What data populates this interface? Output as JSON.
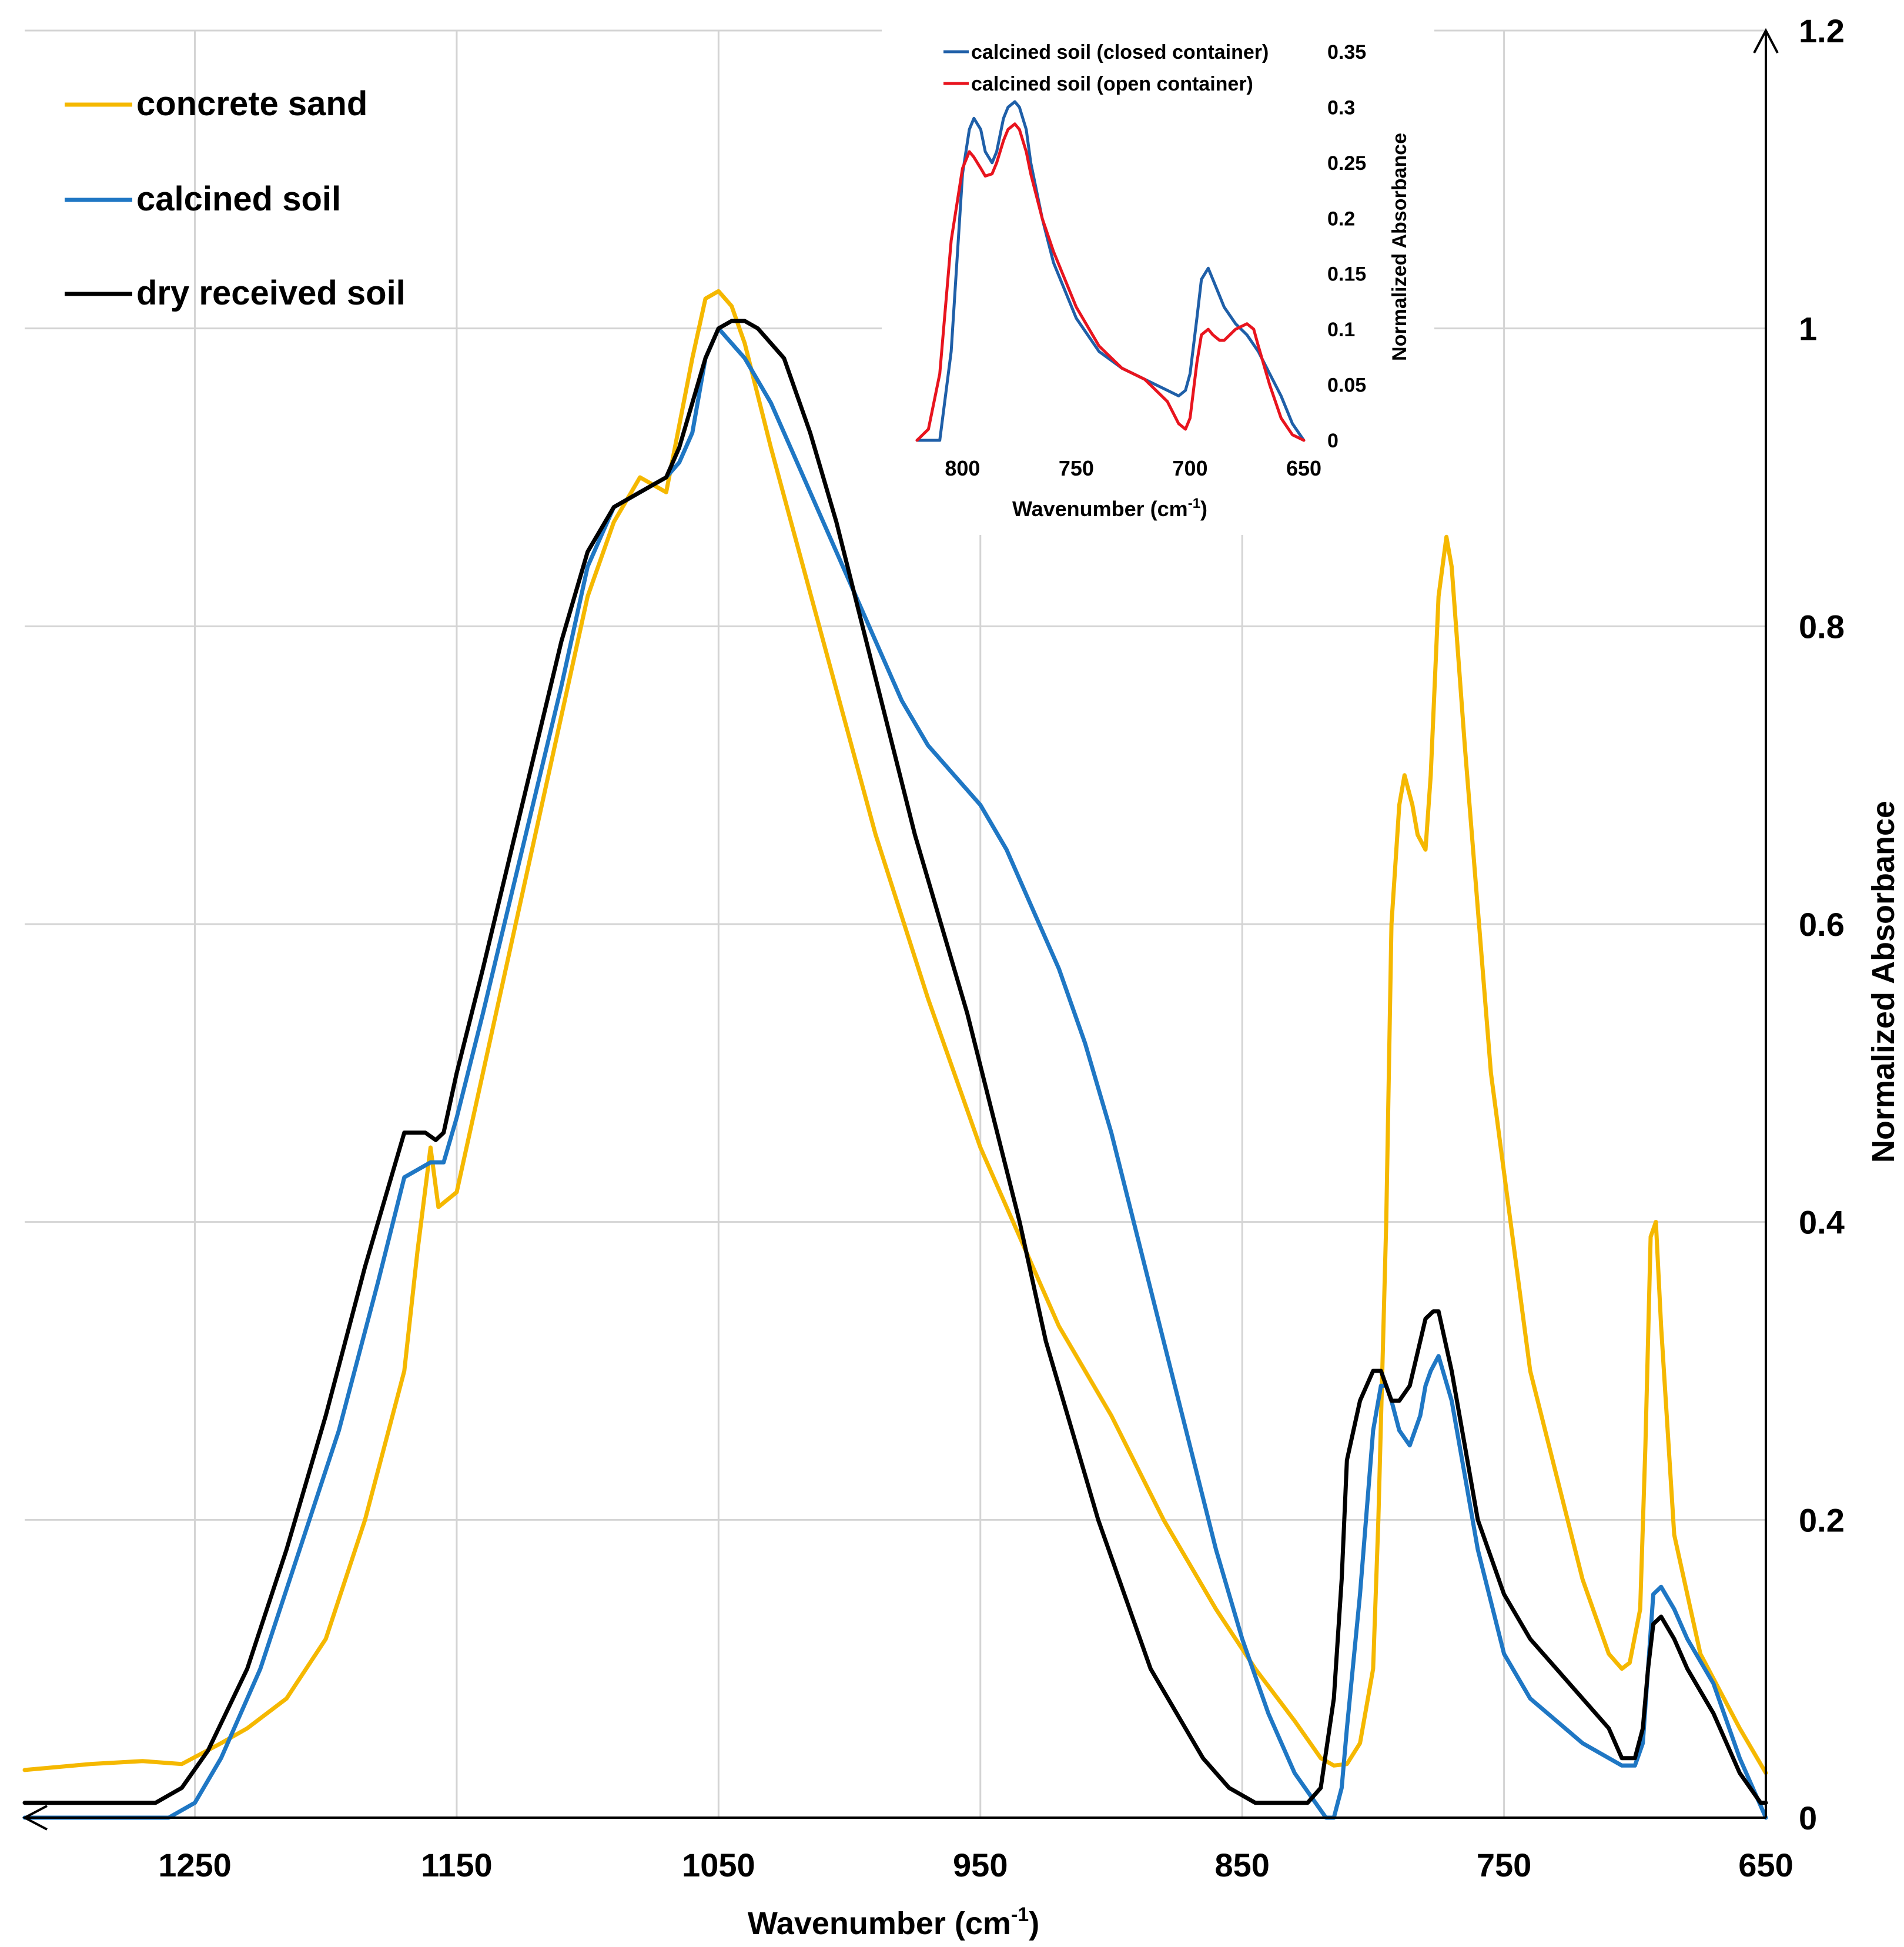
{
  "chart_data": [
    {
      "type": "line",
      "title": "",
      "xlabel": "Wavenumber (cm",
      "xlabel_sup": "-1",
      "xlabel_close": ")",
      "ylabel": "Normalized Absorbance",
      "xlim": [
        1315,
        650
      ],
      "ylim": [
        0,
        1.2
      ],
      "x_reversed": true,
      "grid": true,
      "legend_position": "top-left",
      "xticks": [
        1250,
        1150,
        1050,
        950,
        850,
        750,
        650
      ],
      "xtick_labels": [
        "1250",
        "1150",
        "1050",
        "950",
        "850",
        "750",
        "650"
      ],
      "yticks": [
        0,
        0.2,
        0.4,
        0.6,
        0.8,
        1,
        1.2
      ],
      "ytick_labels": [
        "0",
        "0.2",
        "0.4",
        "0.6",
        "0.8",
        "1",
        "1.2"
      ],
      "series": [
        {
          "name": "concrete sand",
          "color": "#F5B800",
          "x": [
            1315,
            1290,
            1270,
            1255,
            1240,
            1230,
            1215,
            1200,
            1185,
            1170,
            1165,
            1160,
            1157,
            1150,
            1140,
            1120,
            1100,
            1090,
            1080,
            1075,
            1070,
            1060,
            1055,
            1050,
            1045,
            1040,
            1030,
            1010,
            990,
            970,
            950,
            920,
            900,
            880,
            860,
            845,
            830,
            820,
            815,
            810,
            805,
            800,
            798,
            795,
            793,
            790,
            788,
            785,
            783,
            780,
            778,
            775,
            772,
            770,
            765,
            755,
            740,
            720,
            710,
            705,
            702,
            698,
            696,
            694,
            692,
            690,
            685,
            675,
            660,
            650
          ],
          "y": [
            0.032,
            0.036,
            0.038,
            0.036,
            0.05,
            0.06,
            0.08,
            0.12,
            0.2,
            0.3,
            0.38,
            0.45,
            0.41,
            0.42,
            0.5,
            0.66,
            0.82,
            0.87,
            0.9,
            0.895,
            0.89,
            0.98,
            1.02,
            1.025,
            1.015,
            0.99,
            0.92,
            0.79,
            0.66,
            0.55,
            0.45,
            0.33,
            0.27,
            0.2,
            0.14,
            0.1,
            0.065,
            0.04,
            0.035,
            0.036,
            0.05,
            0.1,
            0.2,
            0.4,
            0.6,
            0.68,
            0.7,
            0.68,
            0.66,
            0.65,
            0.7,
            0.82,
            0.86,
            0.84,
            0.72,
            0.5,
            0.3,
            0.16,
            0.11,
            0.1,
            0.104,
            0.14,
            0.25,
            0.39,
            0.4,
            0.33,
            0.19,
            0.11,
            0.06,
            0.03
          ]
        },
        {
          "name": "calcined soil",
          "color": "#1F77C4",
          "x": [
            1315,
            1260,
            1250,
            1240,
            1225,
            1210,
            1195,
            1180,
            1170,
            1160,
            1155,
            1150,
            1140,
            1125,
            1110,
            1100,
            1090,
            1080,
            1070,
            1065,
            1060,
            1055,
            1050,
            1040,
            1030,
            1020,
            1010,
            1000,
            990,
            980,
            970,
            960,
            950,
            940,
            930,
            920,
            910,
            900,
            890,
            880,
            870,
            860,
            850,
            840,
            830,
            822,
            818,
            815,
            812,
            810,
            805,
            800,
            797,
            795,
            793,
            790,
            786,
            782,
            780,
            778,
            775,
            770,
            765,
            760,
            750,
            740,
            730,
            720,
            710,
            705,
            700,
            697,
            695,
            693,
            690,
            685,
            680,
            670,
            660,
            650
          ],
          "y": [
            0.0,
            0.0,
            0.01,
            0.04,
            0.1,
            0.18,
            0.26,
            0.36,
            0.43,
            0.44,
            0.44,
            0.47,
            0.54,
            0.65,
            0.76,
            0.84,
            0.88,
            0.89,
            0.9,
            0.91,
            0.93,
            0.98,
            1.0,
            0.98,
            0.95,
            0.91,
            0.87,
            0.83,
            0.79,
            0.75,
            0.72,
            0.7,
            0.68,
            0.65,
            0.61,
            0.57,
            0.52,
            0.46,
            0.39,
            0.32,
            0.25,
            0.18,
            0.12,
            0.07,
            0.03,
            0.01,
            0.0,
            0.0,
            0.02,
            0.06,
            0.15,
            0.26,
            0.29,
            0.29,
            0.28,
            0.26,
            0.25,
            0.27,
            0.29,
            0.3,
            0.31,
            0.28,
            0.23,
            0.18,
            0.11,
            0.08,
            0.065,
            0.05,
            0.04,
            0.035,
            0.035,
            0.05,
            0.1,
            0.15,
            0.155,
            0.14,
            0.12,
            0.09,
            0.04,
            0.0
          ]
        },
        {
          "name": "dry received soil",
          "color": "#000000",
          "x": [
            1315,
            1265,
            1255,
            1245,
            1230,
            1215,
            1200,
            1185,
            1170,
            1162,
            1158,
            1155,
            1150,
            1140,
            1125,
            1110,
            1100,
            1090,
            1080,
            1070,
            1065,
            1060,
            1055,
            1050,
            1045,
            1040,
            1035,
            1025,
            1015,
            1005,
            995,
            985,
            975,
            965,
            955,
            945,
            935,
            925,
            915,
            905,
            895,
            885,
            875,
            865,
            855,
            845,
            835,
            825,
            820,
            815,
            812,
            810,
            805,
            800,
            797,
            795,
            793,
            790,
            786,
            782,
            780,
            777,
            775,
            770,
            765,
            760,
            750,
            740,
            730,
            720,
            710,
            705,
            700,
            697,
            695,
            693,
            690,
            685,
            680,
            670,
            660,
            652,
            650
          ],
          "y": [
            0.01,
            0.01,
            0.02,
            0.045,
            0.1,
            0.18,
            0.27,
            0.37,
            0.46,
            0.46,
            0.455,
            0.46,
            0.5,
            0.57,
            0.68,
            0.79,
            0.85,
            0.88,
            0.89,
            0.9,
            0.92,
            0.95,
            0.98,
            1.0,
            1.005,
            1.005,
            1.0,
            0.98,
            0.93,
            0.87,
            0.8,
            0.73,
            0.66,
            0.6,
            0.54,
            0.47,
            0.4,
            0.32,
            0.26,
            0.2,
            0.15,
            0.1,
            0.07,
            0.04,
            0.02,
            0.01,
            0.01,
            0.01,
            0.02,
            0.08,
            0.16,
            0.24,
            0.28,
            0.3,
            0.3,
            0.29,
            0.28,
            0.28,
            0.29,
            0.32,
            0.335,
            0.34,
            0.34,
            0.3,
            0.25,
            0.2,
            0.15,
            0.12,
            0.1,
            0.08,
            0.06,
            0.04,
            0.04,
            0.06,
            0.1,
            0.13,
            0.135,
            0.12,
            0.1,
            0.07,
            0.03,
            0.01,
            0.01
          ]
        }
      ]
    },
    {
      "type": "line",
      "title": "",
      "xlabel": "Wavenumber (cm",
      "xlabel_sup": "-1",
      "xlabel_close": ")",
      "ylabel": "Normalized Absorbance",
      "xlim": [
        820,
        650
      ],
      "ylim": [
        0,
        0.35
      ],
      "x_reversed": true,
      "grid": false,
      "legend_position": "top",
      "xticks": [
        800,
        750,
        700,
        650
      ],
      "xtick_labels": [
        "800",
        "750",
        "700",
        "650"
      ],
      "yticks": [
        0,
        0.05,
        0.1,
        0.15,
        0.2,
        0.25,
        0.3,
        0.35
      ],
      "ytick_labels": [
        "0",
        "0.05",
        "0.1",
        "0.15",
        "0.2",
        "0.25",
        "0.3",
        "0.35"
      ],
      "series": [
        {
          "name": "calcined soil (closed container)",
          "color": "#1F5FA8",
          "x": [
            820,
            810,
            805,
            800,
            797,
            795,
            792,
            790,
            787,
            785,
            782,
            780,
            777,
            775,
            772,
            770,
            765,
            760,
            750,
            740,
            730,
            720,
            710,
            705,
            702,
            700,
            697,
            695,
            692,
            690,
            687,
            685,
            680,
            675,
            670,
            665,
            660,
            655,
            650
          ],
          "y": [
            0.0,
            0.0,
            0.08,
            0.24,
            0.28,
            0.29,
            0.28,
            0.26,
            0.25,
            0.26,
            0.29,
            0.3,
            0.305,
            0.3,
            0.28,
            0.25,
            0.2,
            0.16,
            0.11,
            0.08,
            0.065,
            0.055,
            0.045,
            0.04,
            0.045,
            0.06,
            0.11,
            0.145,
            0.155,
            0.145,
            0.13,
            0.12,
            0.105,
            0.095,
            0.08,
            0.06,
            0.04,
            0.015,
            0.0
          ]
        },
        {
          "name": "calcined soil (open container)",
          "color": "#E8141E",
          "x": [
            820,
            815,
            810,
            805,
            800,
            797,
            795,
            792,
            790,
            787,
            785,
            782,
            780,
            777,
            775,
            772,
            770,
            765,
            760,
            750,
            740,
            730,
            720,
            710,
            705,
            702,
            700,
            697,
            695,
            692,
            690,
            687,
            685,
            680,
            675,
            672,
            670,
            665,
            660,
            655,
            650
          ],
          "y": [
            0.0,
            0.01,
            0.06,
            0.18,
            0.245,
            0.26,
            0.255,
            0.245,
            0.238,
            0.24,
            0.25,
            0.27,
            0.28,
            0.285,
            0.28,
            0.26,
            0.24,
            0.2,
            0.17,
            0.12,
            0.085,
            0.065,
            0.055,
            0.035,
            0.015,
            0.01,
            0.02,
            0.07,
            0.095,
            0.1,
            0.095,
            0.09,
            0.09,
            0.1,
            0.105,
            0.1,
            0.085,
            0.05,
            0.02,
            0.005,
            0.0
          ]
        }
      ]
    }
  ]
}
